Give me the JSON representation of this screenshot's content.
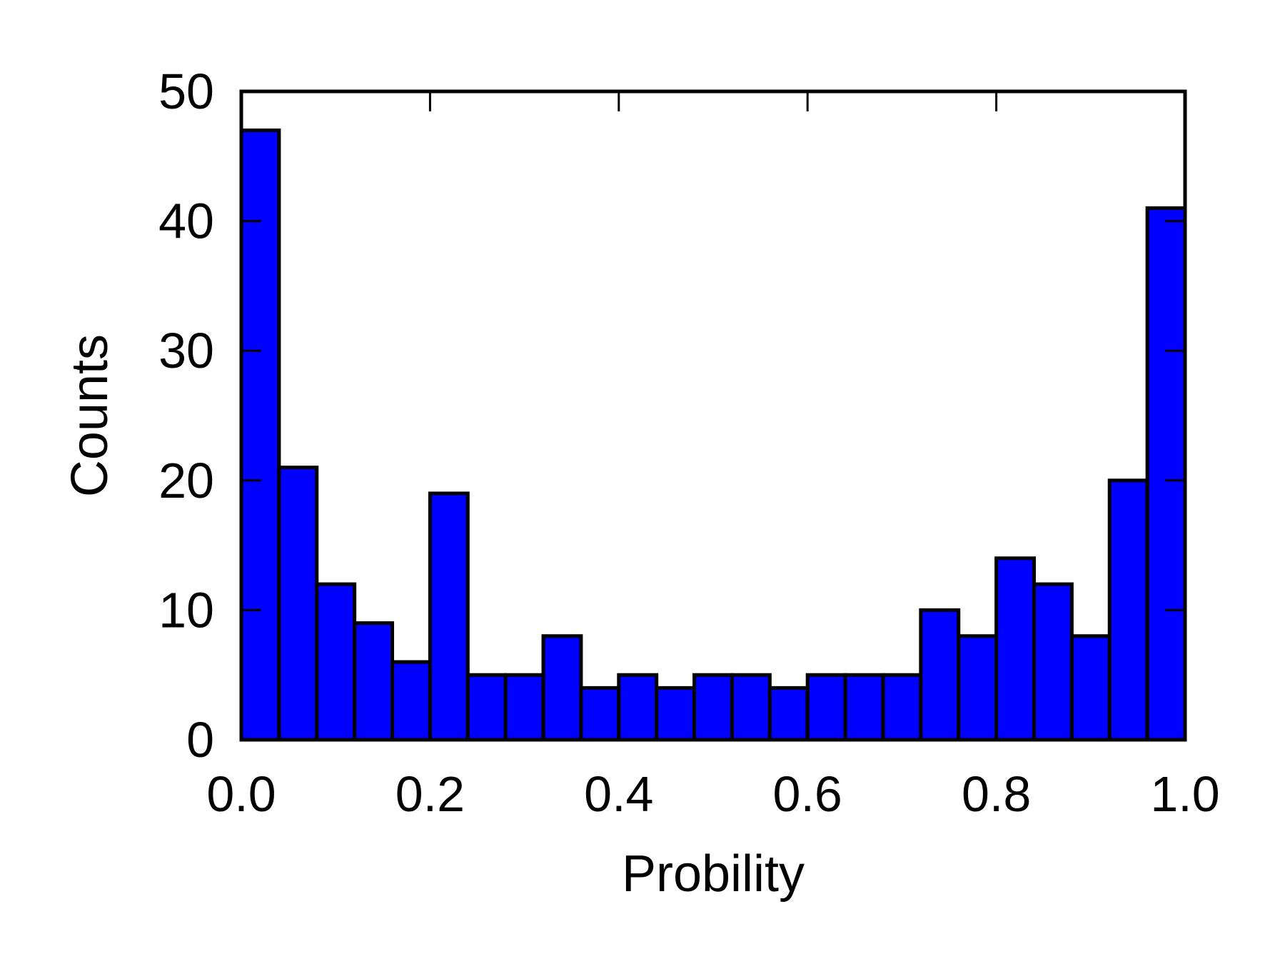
{
  "chart_data": {
    "type": "bar",
    "title": "",
    "xlabel": "Probility",
    "ylabel": "Counts",
    "xlim": [
      0.0,
      1.0
    ],
    "ylim": [
      0,
      50
    ],
    "bin_edges": [
      0.0,
      0.04,
      0.08,
      0.12,
      0.16,
      0.2,
      0.24,
      0.28,
      0.32,
      0.36,
      0.4,
      0.44,
      0.48,
      0.52,
      0.56,
      0.6,
      0.64,
      0.68,
      0.72,
      0.76,
      0.8,
      0.84,
      0.88,
      0.92,
      0.96,
      1.0
    ],
    "values": [
      47,
      21,
      12,
      9,
      6,
      19,
      5,
      5,
      8,
      4,
      5,
      4,
      5,
      5,
      4,
      5,
      5,
      5,
      10,
      8,
      14,
      12,
      8,
      20,
      41
    ],
    "xticks": [
      "0.0",
      "0.2",
      "0.4",
      "0.6",
      "0.8",
      "1.0"
    ],
    "xtick_values": [
      0.0,
      0.2,
      0.4,
      0.6,
      0.8,
      1.0
    ],
    "yticks": [
      "0",
      "10",
      "20",
      "30",
      "40",
      "50"
    ],
    "ytick_values": [
      0,
      10,
      20,
      30,
      40,
      50
    ],
    "bar_color": "#0000ff",
    "edge_color": "#000000",
    "grid": false,
    "legend": "none"
  }
}
